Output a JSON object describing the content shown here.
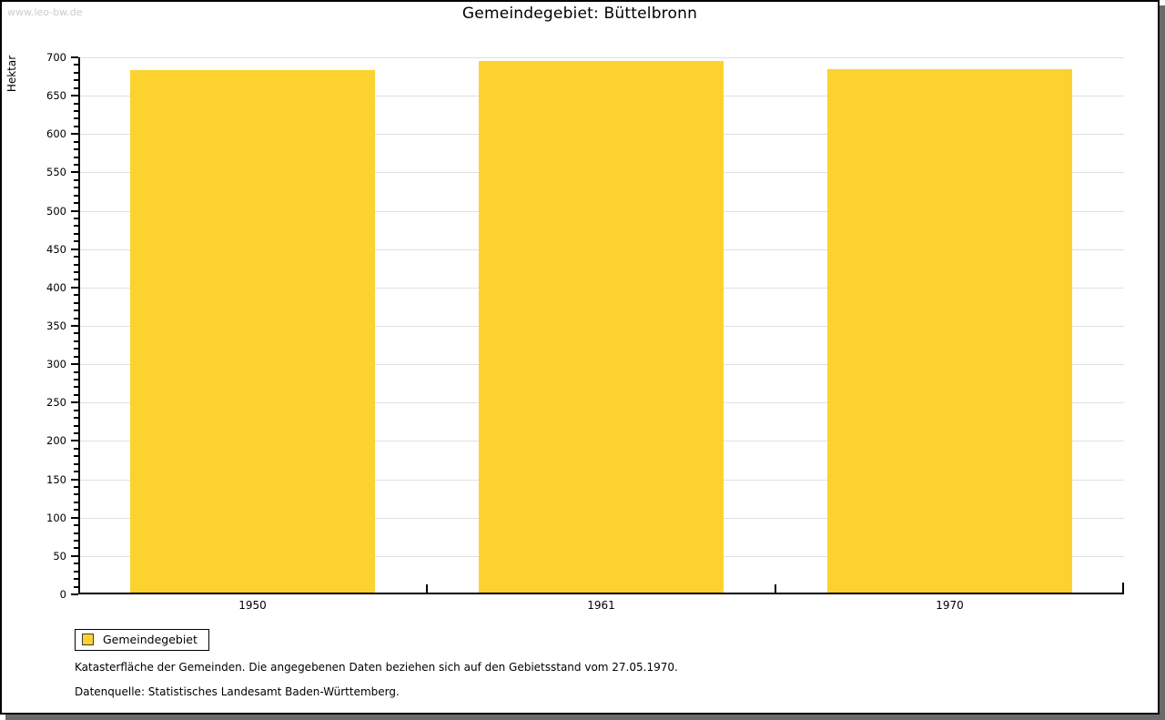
{
  "watermark": "www.leo-bw.de",
  "header": {
    "title": "Gemeindegebiet: Büttelbronn"
  },
  "colors": {
    "bar": "#fcd32e",
    "grid": "#e0e0e0",
    "axis": "#000000",
    "frame_shadow": "#6b6b6b",
    "watermark": "#cccccc"
  },
  "chart_data": {
    "type": "bar",
    "title": "Gemeindegebiet: Büttelbronn",
    "categories": [
      "1950",
      "1961",
      "1970"
    ],
    "values": [
      684,
      695,
      685
    ],
    "series_name": "Gemeindegebiet",
    "xlabel": "",
    "ylabel": "Hektar",
    "ylim": [
      0,
      700
    ],
    "ytick_step": 50,
    "yminor_step": 10,
    "grid": true,
    "bar_color": "#fcd32e",
    "legend_position": "bottom-left"
  },
  "legend": {
    "label": "Gemeindegebiet"
  },
  "footnotes": {
    "line1": "Katasterfläche der Gemeinden. Die angegebenen Daten beziehen sich auf den Gebietsstand vom 27.05.1970.",
    "line2": "Datenquelle: Statistisches Landesamt Baden-Württemberg."
  }
}
